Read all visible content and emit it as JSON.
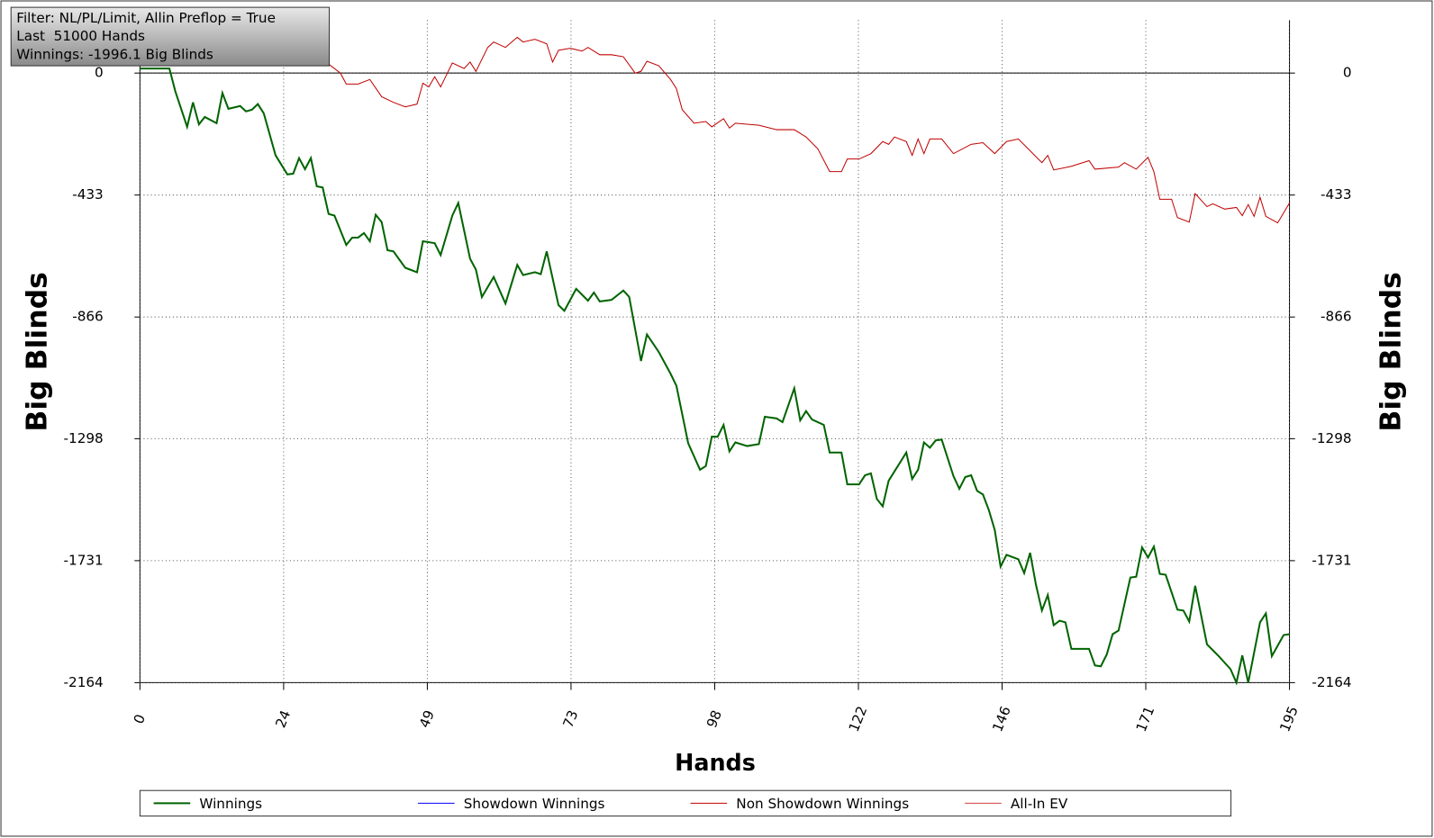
{
  "info_box": {
    "lines": [
      "Filter: NL/PL/Limit, Allin Preflop = True",
      "Last  51000 Hands",
      "Winnings: -1996.1 Big Blinds"
    ]
  },
  "chart_data": {
    "type": "line",
    "xlabel": "Hands",
    "ylabel": "Big Blinds",
    "xlim": [
      0,
      195
    ],
    "ylim": [
      -2164,
      188
    ],
    "xticks": [
      0,
      {
        "value": 24.375,
        "label": "24"
      },
      {
        "value": 48.75,
        "label": "49"
      },
      {
        "value": 73.125,
        "label": "73"
      },
      {
        "value": 97.5,
        "label": "98"
      },
      {
        "value": 121.875,
        "label": "122"
      },
      {
        "value": 146.25,
        "label": "146"
      },
      {
        "value": 170.625,
        "label": "171"
      },
      195
    ],
    "yticks": [
      0,
      -433,
      -866,
      -1298,
      -1731,
      -2164
    ],
    "grid": true,
    "series": [
      {
        "name": "Winnings",
        "color": "#006400",
        "x": [
          0,
          5,
          6,
          8,
          9,
          10,
          11,
          13,
          14,
          15,
          17,
          18,
          19,
          20,
          21,
          23,
          25,
          26,
          27,
          28,
          29,
          30,
          31,
          32,
          33,
          35,
          36,
          37,
          38,
          39,
          40,
          41,
          42,
          43,
          45,
          47,
          48,
          50,
          51,
          53,
          54,
          56,
          57,
          58,
          60,
          62,
          64,
          65,
          67,
          68,
          69,
          71,
          72,
          74,
          76,
          77,
          78,
          80,
          82,
          83,
          85,
          86,
          88,
          90,
          91,
          93,
          95,
          96,
          97,
          98,
          99,
          100,
          101,
          103,
          105,
          106,
          108,
          109,
          111,
          112,
          113,
          114,
          116,
          117,
          119,
          120,
          122,
          123,
          124,
          125,
          126,
          127,
          130,
          131,
          132,
          133,
          134,
          135,
          136,
          138,
          139,
          140,
          141,
          142,
          143,
          144,
          145,
          146,
          147,
          149,
          150,
          151,
          152,
          153,
          154,
          155,
          156,
          157,
          158,
          160,
          161,
          162,
          163,
          164,
          165,
          166,
          168,
          169,
          170,
          171,
          172,
          173,
          174,
          176,
          177,
          178,
          179,
          181,
          183,
          185,
          186,
          187,
          188,
          190,
          191,
          192,
          194,
          195
        ],
        "values": [
          16,
          16,
          -65,
          -191,
          -104,
          -182,
          -156,
          -178,
          -71,
          -127,
          -117,
          -136,
          -130,
          -110,
          -143,
          -292,
          -360,
          -357,
          -302,
          -341,
          -302,
          -402,
          -406,
          -500,
          -506,
          -610,
          -584,
          -584,
          -568,
          -597,
          -503,
          -529,
          -629,
          -633,
          -691,
          -707,
          -597,
          -604,
          -646,
          -506,
          -461,
          -659,
          -698,
          -795,
          -724,
          -818,
          -681,
          -717,
          -707,
          -714,
          -633,
          -824,
          -844,
          -766,
          -808,
          -779,
          -811,
          -805,
          -772,
          -795,
          -1022,
          -928,
          -990,
          -1067,
          -1110,
          -1314,
          -1408,
          -1395,
          -1291,
          -1291,
          -1249,
          -1343,
          -1311,
          -1324,
          -1317,
          -1220,
          -1226,
          -1239,
          -1119,
          -1233,
          -1200,
          -1230,
          -1249,
          -1347,
          -1347,
          -1460,
          -1460,
          -1428,
          -1421,
          -1512,
          -1538,
          -1447,
          -1347,
          -1441,
          -1408,
          -1311,
          -1330,
          -1304,
          -1301,
          -1431,
          -1476,
          -1434,
          -1428,
          -1483,
          -1496,
          -1551,
          -1622,
          -1752,
          -1710,
          -1726,
          -1775,
          -1703,
          -1817,
          -1908,
          -1853,
          -1960,
          -1944,
          -1950,
          -2044,
          -2044,
          -2044,
          -2103,
          -2106,
          -2064,
          -1992,
          -1979,
          -1791,
          -1788,
          -1684,
          -1720,
          -1681,
          -1778,
          -1781,
          -1905,
          -1908,
          -1947,
          -1820,
          -2028,
          -2070,
          -2116,
          -2164,
          -2067,
          -2164,
          -1950,
          -1918,
          -2070,
          -1995,
          -1992
        ]
      },
      {
        "name": "Showdown Winnings",
        "color": "#0000ff",
        "x": [],
        "values": []
      },
      {
        "name": "Non Showdown Winnings",
        "color": "#c00000",
        "x": [
          32,
          34,
          35,
          37,
          39,
          41,
          43,
          45,
          47,
          48,
          49,
          50,
          51,
          53,
          55,
          56,
          57,
          59,
          60,
          62,
          64,
          65,
          67,
          69,
          70,
          71,
          73,
          75,
          76,
          78,
          80,
          82,
          84,
          85,
          86,
          88,
          90,
          91,
          92,
          94,
          96,
          97,
          99,
          100,
          101,
          105,
          108,
          111,
          113,
          115,
          117,
          119,
          120,
          122,
          124,
          126,
          127,
          128,
          130,
          131,
          132,
          133,
          134,
          136,
          138,
          141,
          143,
          145,
          147,
          149,
          151,
          153,
          154,
          155,
          158,
          161,
          162,
          166,
          167,
          169,
          171,
          172,
          173,
          175,
          176,
          178,
          179,
          181,
          182,
          184,
          186,
          187,
          188,
          189,
          190,
          191,
          193,
          195
        ],
        "values": [
          32,
          0,
          -39,
          -39,
          -23,
          -84,
          -104,
          -120,
          -110,
          -36,
          -49,
          -13,
          -49,
          36,
          16,
          39,
          6,
          91,
          110,
          91,
          127,
          110,
          120,
          104,
          39,
          81,
          88,
          78,
          91,
          65,
          65,
          58,
          0,
          6,
          42,
          26,
          -23,
          -55,
          -130,
          -178,
          -172,
          -191,
          -162,
          -195,
          -178,
          -185,
          -201,
          -201,
          -227,
          -269,
          -350,
          -350,
          -305,
          -305,
          -286,
          -243,
          -253,
          -227,
          -243,
          -292,
          -234,
          -286,
          -234,
          -234,
          -286,
          -253,
          -247,
          -286,
          -243,
          -234,
          -276,
          -318,
          -292,
          -344,
          -331,
          -311,
          -341,
          -334,
          -318,
          -341,
          -299,
          -350,
          -448,
          -448,
          -513,
          -529,
          -428,
          -474,
          -464,
          -483,
          -477,
          -506,
          -467,
          -509,
          -441,
          -509,
          -532,
          -461
        ]
      },
      {
        "name": "All-In EV",
        "color": "#d04040",
        "x": [],
        "values": []
      }
    ]
  }
}
